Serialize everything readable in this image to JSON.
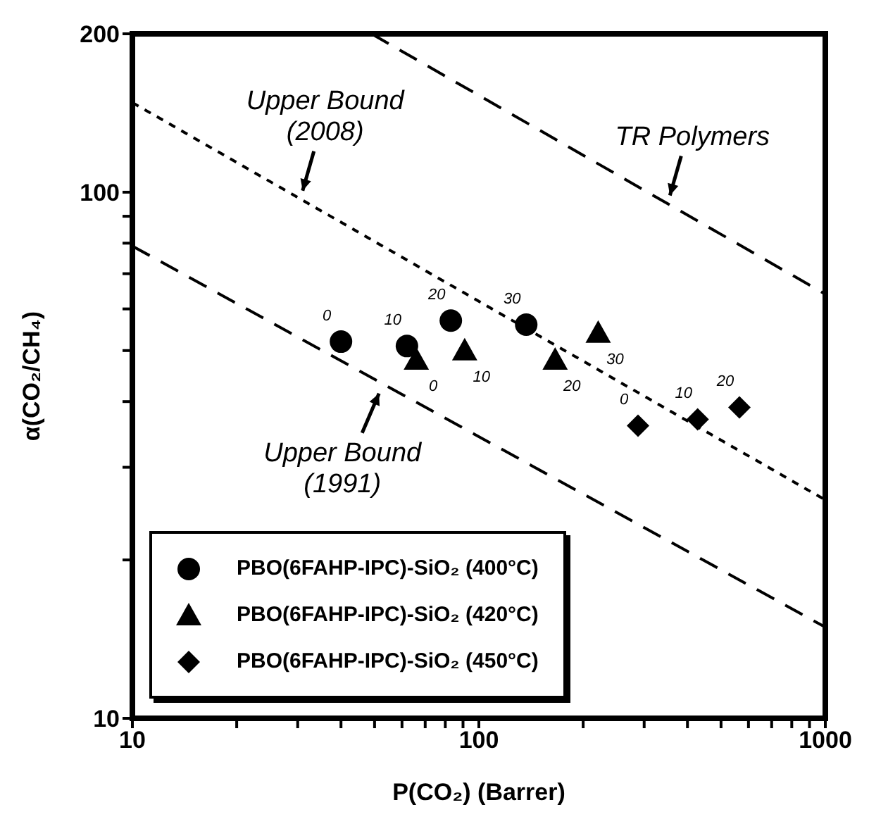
{
  "chart_data": {
    "type": "scatter",
    "xlabel": "P(CO₂) (Barrer)",
    "ylabel": "α(CO₂/CH₄)",
    "log": "xy",
    "legend": "bottom left",
    "xlim": [
      10,
      1000
    ],
    "ylim": [
      10,
      200
    ],
    "xticks": [
      10,
      {
        "value": 20,
        "label": null
      },
      {
        "value": 30,
        "label": null
      },
      {
        "value": 40,
        "label": null
      },
      {
        "value": 50,
        "label": null
      },
      {
        "value": 60,
        "label": null
      },
      {
        "value": 70,
        "label": null
      },
      {
        "value": 80,
        "label": null
      },
      {
        "value": 90,
        "label": null
      },
      100,
      {
        "value": 200,
        "label": null
      },
      {
        "value": 300,
        "label": null
      },
      {
        "value": 400,
        "label": null
      },
      {
        "value": 500,
        "label": null
      },
      {
        "value": 600,
        "label": null
      },
      {
        "value": 700,
        "label": null
      },
      {
        "value": 800,
        "label": null
      },
      {
        "value": 900,
        "label": null
      },
      1000
    ],
    "yticks": [
      10,
      {
        "value": 20,
        "label": null
      },
      {
        "value": 30,
        "label": null
      },
      {
        "value": 40,
        "label": null
      },
      {
        "value": 50,
        "label": null
      },
      {
        "value": 60,
        "label": null
      },
      {
        "value": 70,
        "label": null
      },
      {
        "value": 80,
        "label": null
      },
      {
        "value": 90,
        "label": null
      },
      100,
      200
    ],
    "series": [
      {
        "name": "PBO(6FAHP-IPC)-SiO₂ (400°C)",
        "marker": "circle",
        "color": "#000000",
        "x": [
          40,
          62,
          83,
          137
        ],
        "values": [
          52,
          51,
          57,
          56
        ]
      },
      {
        "name": "PBO(6FAHP-IPC)-SiO₂ (420°C)",
        "marker": "triangle",
        "color": "#000000",
        "x": [
          66,
          91,
          166,
          221
        ],
        "values": [
          48,
          50,
          48,
          54
        ]
      },
      {
        "name": "PBO(6FAHP-IPC)-SiO₂ (450°C)",
        "marker": "diamond",
        "color": "#000000",
        "x": [
          288,
          428,
          565
        ],
        "values": [
          36,
          37,
          39
        ]
      },
      {
        "type": "line",
        "marker": "none",
        "line_style": "dashed",
        "color": "#000000",
        "x": [
          10,
          1000
        ],
        "values": [
          79,
          14.9
        ]
      },
      {
        "type": "line",
        "marker": "none",
        "line_style": "dotted",
        "color": "#000000",
        "x": [
          10,
          1000
        ],
        "values": [
          148,
          26
        ]
      },
      {
        "type": "line",
        "marker": "none",
        "line_style": "dashed",
        "color": "#000000",
        "x": [
          49,
          1000
        ],
        "values": [
          200,
          64
        ]
      }
    ],
    "annotations": [
      {
        "text": "0",
        "x": 40,
        "y": 52
      },
      {
        "text": "10",
        "x": 62,
        "y": 51
      },
      {
        "text": "20",
        "x": 83,
        "y": 57
      },
      {
        "text": "30",
        "x": 137,
        "y": 56
      },
      {
        "text": "0",
        "x": 66,
        "y": 48
      },
      {
        "text": "10",
        "x": 91,
        "y": 50
      },
      {
        "text": "20",
        "x": 166,
        "y": 48
      },
      {
        "text": "30",
        "x": 221,
        "y": 54
      },
      {
        "text": "0",
        "x": 288,
        "y": 36
      },
      {
        "text": "10",
        "x": 428,
        "y": 37
      },
      {
        "text": "20",
        "x": 565,
        "y": 39
      },
      {
        "text": "Upper Bound\n(2008)",
        "x": 31,
        "y": 97
      },
      {
        "text": "Upper Bound\n(1991)",
        "x": 51.5,
        "y": 43
      },
      {
        "text": "TR Polymers",
        "x": 356,
        "y": 95
      }
    ]
  }
}
